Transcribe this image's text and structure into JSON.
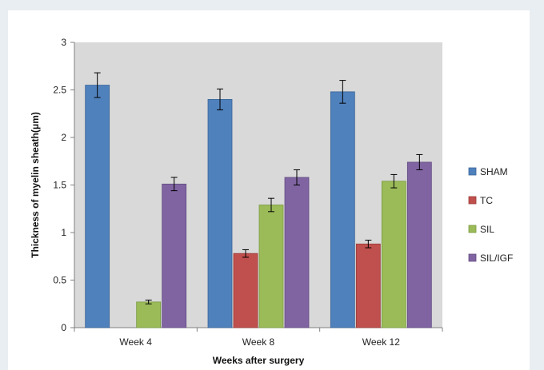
{
  "chart_data": {
    "type": "bar",
    "title": "",
    "xlabel": "Weeks after surgery",
    "ylabel": "Thickness of myelin sheath(μm)",
    "ylim": [
      0,
      3
    ],
    "yticks": [
      0,
      0.5,
      1,
      1.5,
      2,
      2.5,
      3
    ],
    "ytick_labels": [
      "0",
      "0.5",
      "1",
      "1.5",
      "2",
      "2.5",
      "3"
    ],
    "categories": [
      "Week 4",
      "Week 8",
      "Week 12"
    ],
    "grid": false,
    "legend_position": "right",
    "series": [
      {
        "name": "SHAM",
        "color": "#4f81bd",
        "stroke": "#3a6497",
        "values": [
          2.55,
          2.4,
          2.48
        ],
        "errors": [
          0.13,
          0.11,
          0.12
        ]
      },
      {
        "name": "TC",
        "color": "#c0504d",
        "stroke": "#9a3a38",
        "values": [
          0,
          0.78,
          0.88
        ],
        "errors": [
          0,
          0.04,
          0.04
        ]
      },
      {
        "name": "SIL",
        "color": "#9bbb59",
        "stroke": "#7a9a40",
        "values": [
          0.27,
          1.29,
          1.54
        ],
        "errors": [
          0.02,
          0.07,
          0.07
        ]
      },
      {
        "name": "SIL/IGF",
        "color": "#8064a2",
        "stroke": "#634c82",
        "values": [
          1.51,
          1.58,
          1.74
        ],
        "errors": [
          0.07,
          0.08,
          0.08
        ]
      }
    ]
  }
}
